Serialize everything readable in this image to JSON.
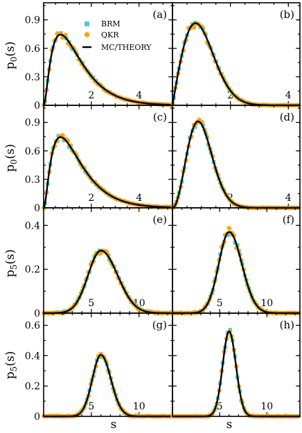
{
  "figure": {
    "ylabel_top": "p",
    "ylabel_top_sub": "0",
    "ylabel_bottom": "p",
    "ylabel_bottom_sub": "5",
    "ylabel_top_arg": "(s)",
    "xlabel": "s"
  },
  "legend": {
    "brm": "BRM",
    "qkr": "QKR",
    "theory": "MC/THEORY"
  },
  "colors": {
    "brm": "#48d1cc",
    "qkr": "#ffa500",
    "theory": "#000000"
  },
  "chart_data": [
    {
      "id": "a",
      "label": "(a)",
      "type": "scatter",
      "xlim": [
        0,
        5.4
      ],
      "ylim": [
        0,
        1.08
      ],
      "xticks": [
        2,
        4
      ],
      "yticks": [
        0,
        0.3,
        0.6,
        0.9
      ],
      "dist": "poisson_like1"
    },
    {
      "id": "b",
      "label": "(b)",
      "type": "scatter",
      "xlim": [
        0,
        4.4
      ],
      "ylim": [
        0,
        1.08
      ],
      "xticks": [
        2,
        4
      ],
      "yticks": [],
      "dist": "goe"
    },
    {
      "id": "c",
      "label": "(c)",
      "type": "scatter",
      "xlim": [
        0,
        5.4
      ],
      "ylim": [
        0,
        1.08
      ],
      "xticks": [
        2,
        4
      ],
      "yticks": [
        0,
        0.3,
        0.6,
        0.9
      ],
      "dist": "poisson_like2"
    },
    {
      "id": "d",
      "label": "(d)",
      "type": "scatter",
      "xlim": [
        0,
        4.4
      ],
      "ylim": [
        0,
        1.08
      ],
      "xticks": [
        2,
        4
      ],
      "yticks": [],
      "dist": "gue"
    },
    {
      "id": "e",
      "label": "(e)",
      "type": "scatter",
      "xlim": [
        0,
        13.5
      ],
      "ylim": [
        0,
        0.48
      ],
      "xticks": [
        5,
        10
      ],
      "yticks": [
        0,
        0.2,
        0.4
      ],
      "dist": "p5_wide"
    },
    {
      "id": "f",
      "label": "(f)",
      "type": "scatter",
      "xlim": [
        0,
        13.5
      ],
      "ylim": [
        0,
        0.48
      ],
      "xticks": [
        5,
        10
      ],
      "yticks": [],
      "dist": "p5_mid"
    },
    {
      "id": "g",
      "label": "(g)",
      "type": "scatter",
      "xlim": [
        0,
        13.5
      ],
      "ylim": [
        0,
        0.68
      ],
      "xticks": [
        5,
        10
      ],
      "yticks": [
        0,
        0.2,
        0.4,
        0.6
      ],
      "dist": "p5_g"
    },
    {
      "id": "h",
      "label": "(h)",
      "type": "scatter",
      "xlim": [
        0,
        13.5
      ],
      "ylim": [
        0,
        0.68
      ],
      "xticks": [
        5,
        10
      ],
      "yticks": [],
      "dist": "p5_h"
    }
  ]
}
